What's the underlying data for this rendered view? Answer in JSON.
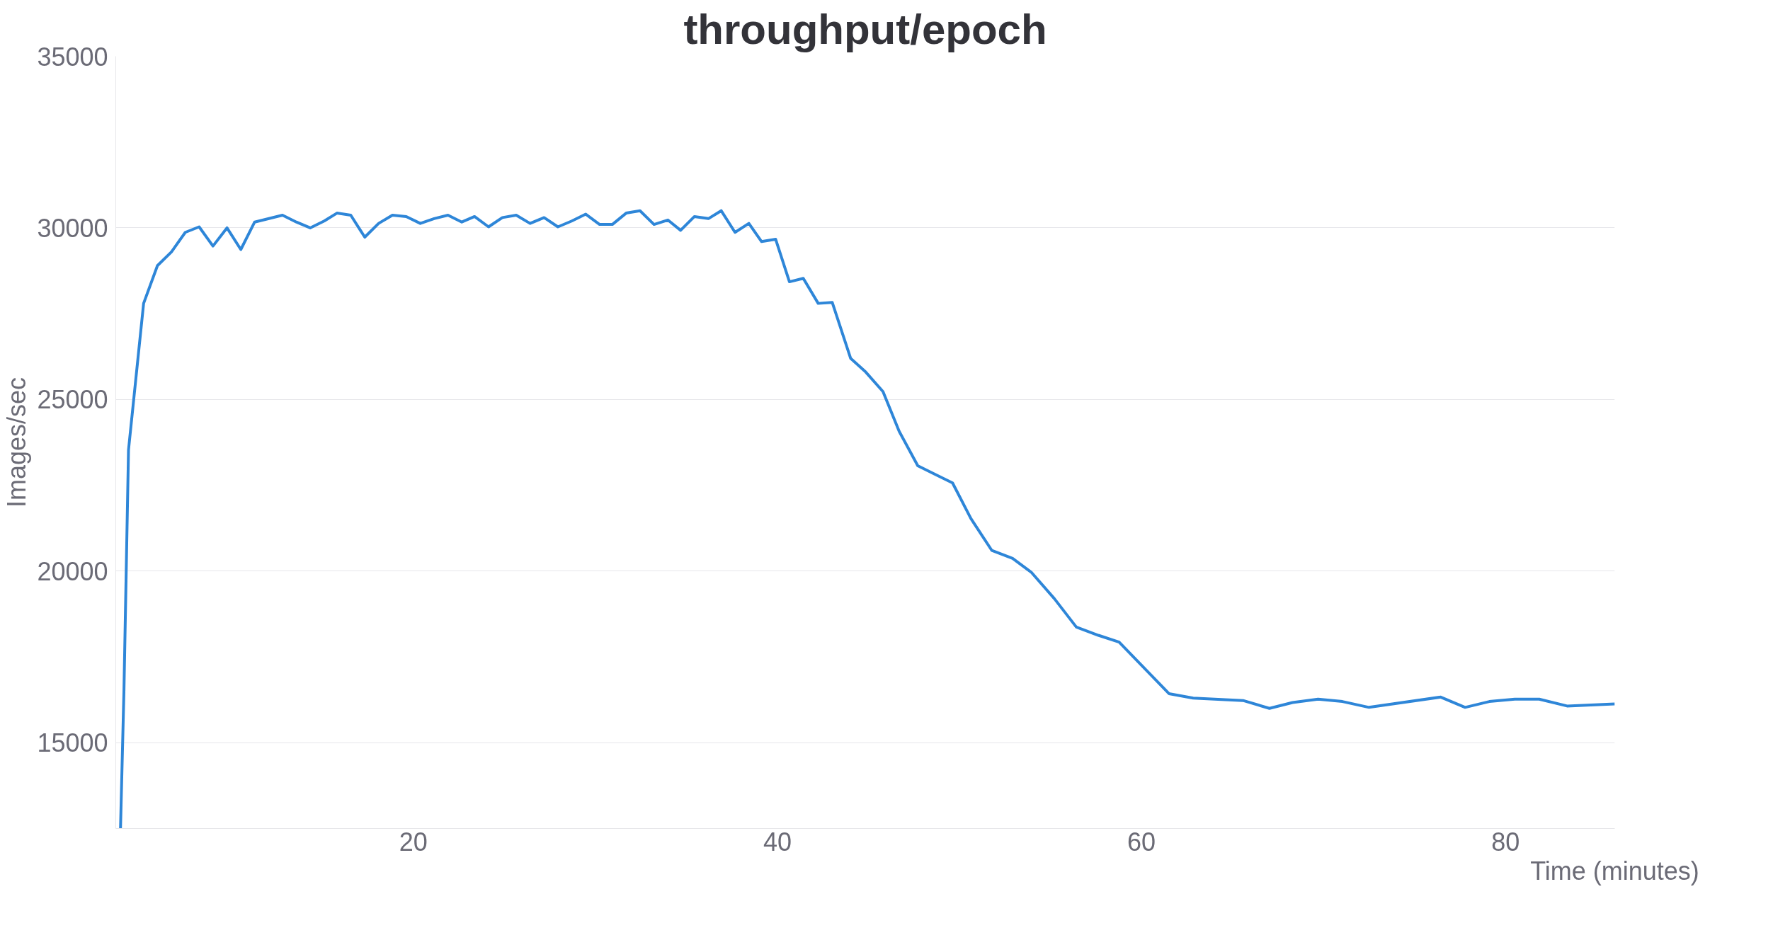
{
  "chart_data": {
    "type": "line",
    "title": "throughput/epoch",
    "xlabel": "Time (minutes)",
    "ylabel": "Images/sec",
    "series": [
      {
        "color": "#2e86d8",
        "x": [
          3.91,
          4.1,
          4.35,
          5.18,
          5.94,
          6.71,
          7.47,
          8.23,
          8.99,
          9.76,
          10.52,
          11.28,
          12.81,
          13.57,
          14.33,
          15.1,
          15.8,
          16.56,
          17.33,
          18.09,
          18.85,
          19.61,
          20.38,
          21.14,
          21.9,
          22.66,
          23.36,
          24.13,
          24.89,
          25.65,
          26.41,
          27.18,
          27.94,
          28.7,
          29.47,
          30.23,
          30.93,
          31.69,
          32.45,
          33.22,
          33.98,
          34.68,
          35.44,
          36.21,
          36.91,
          37.67,
          38.43,
          39.13,
          39.9,
          40.66,
          41.42,
          42.24,
          43.01,
          44.02,
          44.85,
          45.8,
          46.69,
          47.71,
          48.73,
          49.62,
          50.63,
          51.78,
          52.92,
          53.94,
          55.21,
          56.42,
          57.63,
          58.77,
          61.51,
          62.84,
          65.58,
          67.03,
          68.3,
          69.7,
          71.04,
          72.5,
          76.44,
          77.78,
          79.11,
          80.51,
          81.85,
          83.38,
          86.0
        ],
        "values": [
          12500,
          16530,
          23530,
          27800,
          28900,
          29300,
          29870,
          30030,
          29470,
          30000,
          29370,
          30170,
          30370,
          30170,
          30000,
          30200,
          30430,
          30370,
          29730,
          30130,
          30370,
          30330,
          30130,
          30270,
          30370,
          30170,
          30330,
          30030,
          30300,
          30370,
          30130,
          30300,
          30030,
          30200,
          30400,
          30100,
          30100,
          30430,
          30500,
          30100,
          30230,
          29930,
          30330,
          30270,
          30500,
          29870,
          30130,
          29600,
          29670,
          28430,
          28530,
          27800,
          27830,
          26200,
          25800,
          25230,
          24070,
          23070,
          22800,
          22570,
          21530,
          20600,
          20370,
          19970,
          19200,
          18370,
          18130,
          17930,
          16430,
          16300,
          16230,
          16000,
          16170,
          16270,
          16200,
          16030,
          16330,
          16030,
          16200,
          16270,
          16270,
          16070,
          16130
        ]
      }
    ],
    "xlim": [
      3.65,
      86
    ],
    "ylim": [
      12500,
      35000
    ],
    "xticks": [
      20,
      40,
      60,
      80
    ],
    "yticks": [
      15000,
      20000,
      25000,
      30000,
      35000
    ],
    "grid": "y",
    "marker": "none",
    "line_style": "solid"
  }
}
